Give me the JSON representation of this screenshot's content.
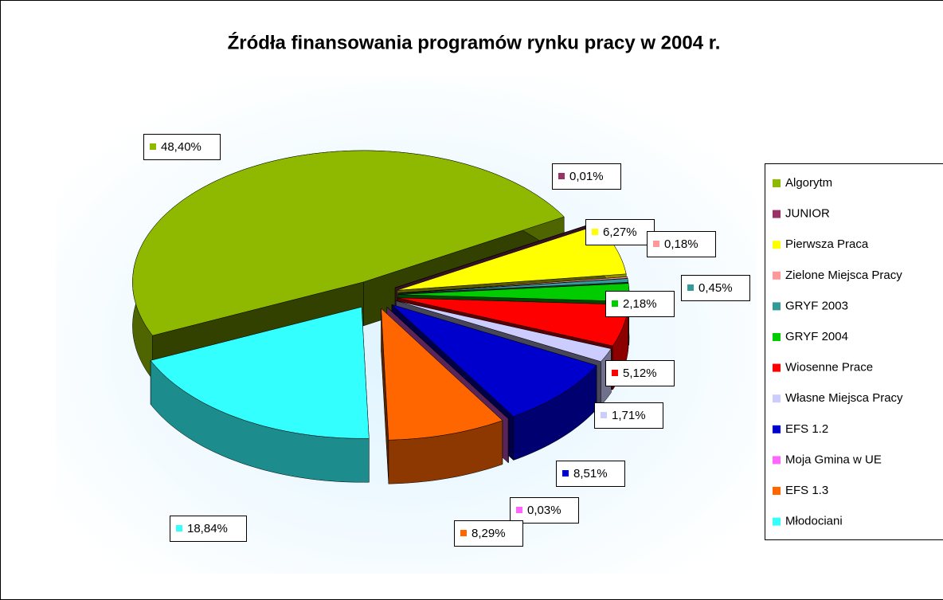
{
  "chart_data": {
    "type": "pie",
    "title": "Źródła finansowania programów rynku pracy w 2004 r.",
    "categories": [
      "Algorytm",
      "JUNIOR",
      "Pierwsza Praca",
      "Zielone Miejsca Pracy",
      "GRYF 2003",
      "GRYF 2004",
      "Wiosenne Prace",
      "Własne Miejsca Pracy",
      "EFS 1.2",
      "Moja Gmina w UE",
      "EFS 1.3",
      "Młodociani"
    ],
    "values": [
      48.4,
      0.01,
      6.27,
      0.18,
      0.45,
      2.18,
      5.12,
      1.71,
      8.51,
      0.03,
      8.29,
      18.84
    ],
    "value_labels": [
      "48,40%",
      "0,01%",
      "6,27%",
      "0,18%",
      "0,45%",
      "2,18%",
      "5,12%",
      "1,71%",
      "8,51%",
      "0,03%",
      "8,29%",
      "18,84%"
    ],
    "colors": [
      "#8fb800",
      "#993366",
      "#ffff00",
      "#ff9999",
      "#339999",
      "#00cc00",
      "#ff0000",
      "#ccccff",
      "#0000cc",
      "#ff66ff",
      "#ff6600",
      "#33ffff"
    ],
    "legend": "right"
  }
}
